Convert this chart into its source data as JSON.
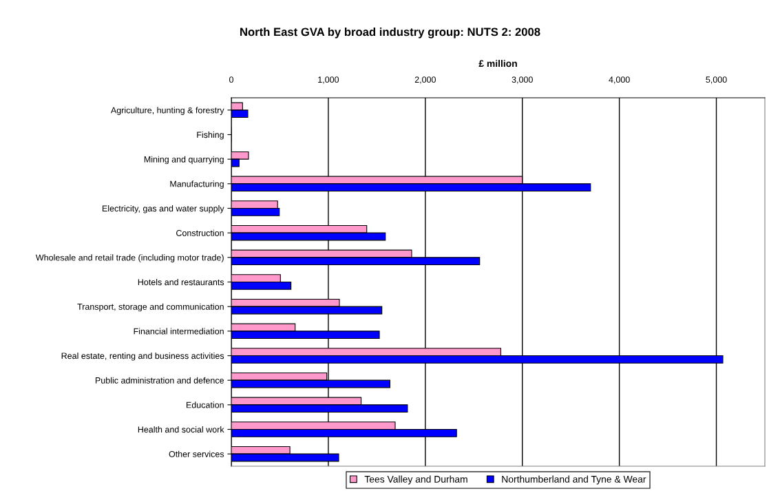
{
  "chart_data": {
    "type": "bar",
    "orientation": "horizontal",
    "title": "North East GVA by broad industry group: NUTS 2: 2008",
    "xlabel": "£ million",
    "categories": [
      "Agriculture, hunting & forestry",
      "Fishing",
      "Mining and quarrying",
      "Manufacturing",
      "Electricity, gas and water supply",
      "Construction",
      "Wholesale and retail trade (including motor trade)",
      "Hotels and restaurants",
      "Transport, storage and communication",
      "Financial intermediation",
      "Real estate, renting and business activities",
      "Public administration and defence",
      "Education",
      "Health and social work",
      "Other services"
    ],
    "series": [
      {
        "name": "Tees Valley and Durham",
        "color": "#ff99cc",
        "values": [
          116,
          0,
          177,
          3000,
          477,
          1396,
          1859,
          506,
          1114,
          658,
          2778,
          984,
          1338,
          1689,
          604
        ]
      },
      {
        "name": "Northumberland and Tyne & Wear",
        "color": "#0000ff",
        "values": [
          170,
          0,
          80,
          3703,
          495,
          1588,
          2560,
          615,
          1552,
          1526,
          5067,
          1635,
          1816,
          2322,
          1107
        ]
      }
    ],
    "xlim": [
      0,
      5500
    ],
    "xticks": [
      0,
      {
        "value": 1000,
        "label": "1,000"
      },
      {
        "value": 2000,
        "label": "2,000"
      },
      {
        "value": 3000,
        "label": "3,000"
      },
      {
        "value": 4000,
        "label": "4,000"
      },
      {
        "value": 5000,
        "label": "5,000"
      }
    ],
    "grid": "x",
    "legend": "bottom"
  }
}
